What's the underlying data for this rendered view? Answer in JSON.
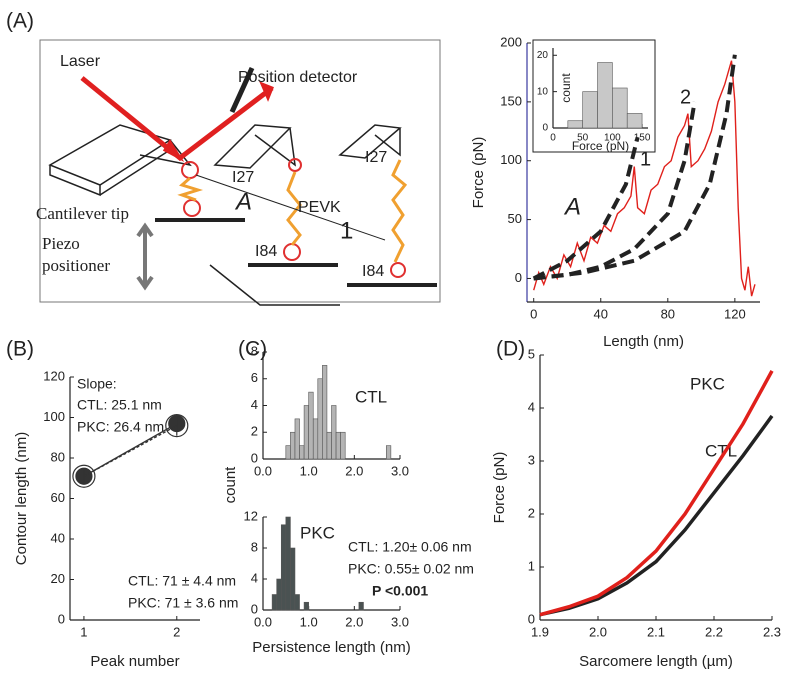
{
  "panels": [
    "(A)",
    "(B)",
    "(C)",
    "(D)"
  ],
  "diagram": {
    "labels": [
      "Laser",
      "Position detector",
      "Cantilever tip",
      "Piezo",
      "positioner",
      "I27",
      "PEVK",
      "I27",
      "I84",
      "I84",
      "A",
      "1"
    ]
  },
  "chart_data": [
    {
      "type": "line",
      "xlabel": "Length (nm)",
      "ylabel": "Force (pN)",
      "xlim": [
        -4,
        135
      ],
      "ylim": [
        -20,
        200
      ],
      "xticks": [
        0,
        40,
        80,
        120
      ],
      "yticks": [
        0,
        50,
        100,
        150,
        200
      ],
      "series": [
        {
          "color": "#e0201b",
          "x": [
            0,
            3,
            6,
            10,
            14,
            18,
            22,
            26,
            30,
            34,
            38,
            42,
            46,
            50,
            54,
            58,
            60,
            62,
            66,
            70,
            74,
            78,
            82,
            86,
            90,
            92,
            94,
            98,
            102,
            106,
            110,
            114,
            118,
            120,
            122,
            124,
            126,
            128,
            130,
            132
          ],
          "values": [
            -10,
            5,
            -5,
            10,
            0,
            20,
            10,
            30,
            15,
            35,
            30,
            45,
            40,
            55,
            60,
            70,
            95,
            60,
            55,
            75,
            80,
            95,
            100,
            120,
            130,
            140,
            95,
            100,
            110,
            125,
            150,
            165,
            185,
            150,
            60,
            0,
            -10,
            10,
            -15,
            -5
          ]
        },
        {
          "color": "#222222",
          "dash": true,
          "label": "A",
          "x": [
            0,
            20,
            40,
            55,
            62
          ],
          "values": [
            0,
            15,
            40,
            80,
            120
          ]
        },
        {
          "color": "#222222",
          "dash": true,
          "label": "1",
          "x": [
            0,
            20,
            40,
            60,
            80,
            90,
            96
          ],
          "values": [
            0,
            3,
            10,
            25,
            55,
            100,
            150
          ]
        },
        {
          "color": "#222222",
          "dash": true,
          "label": "2",
          "x": [
            0,
            30,
            60,
            90,
            105,
            115,
            120
          ],
          "values": [
            0,
            5,
            15,
            40,
            80,
            140,
            190
          ]
        }
      ]
    },
    {
      "type": "histogram",
      "xlabel": "Force (pN)",
      "ylabel": "count",
      "color": "#c8c8c8",
      "xlim": [
        0,
        160
      ],
      "ylim": [
        0,
        22
      ],
      "xticks": [
        0,
        50,
        100,
        150
      ],
      "yticks": [
        0,
        10,
        20
      ],
      "bins": [
        0,
        25,
        50,
        75,
        100,
        125,
        150
      ],
      "values": [
        0,
        2,
        10,
        18,
        11,
        4
      ]
    },
    {
      "type": "line",
      "xlabel": "Peak number",
      "ylabel": "Contour length (nm)",
      "xlim": [
        0.85,
        2.25
      ],
      "ylim": [
        0,
        120
      ],
      "xticks": [
        1,
        2
      ],
      "yticks": [
        0,
        20,
        40,
        60,
        80,
        100,
        120
      ],
      "x": [
        1,
        2
      ],
      "series": [
        {
          "color": "#333333",
          "marker": "filled",
          "values": [
            71,
            97
          ]
        },
        {
          "color": "#333333",
          "marker": "open",
          "dash": true,
          "values": [
            71,
            96
          ],
          "errors": [
            3,
            5
          ]
        }
      ],
      "annotations": [
        "Slope:",
        "CTL: 25.1 nm",
        "PKC: 26.4 nm",
        "CTL: 71 ± 4.4 nm",
        "PKC: 71 ± 3.6 nm"
      ]
    },
    {
      "type": "histogram",
      "ylabel": "count",
      "label": "CTL",
      "color": "#b4b4b4",
      "xlim": [
        0,
        3
      ],
      "ylim": [
        0,
        8
      ],
      "xticks": [
        {
          "value": 0,
          "label": "0.0"
        },
        {
          "value": 1,
          "label": "1.0"
        },
        {
          "value": 2,
          "label": "2.0"
        },
        {
          "value": 3,
          "label": "3.0"
        }
      ],
      "yticks": [
        0,
        2,
        4,
        6,
        8
      ],
      "bins": [
        0.5,
        0.6,
        0.7,
        0.8,
        0.9,
        1.0,
        1.1,
        1.2,
        1.3,
        1.4,
        1.5,
        1.6,
        1.7,
        1.8,
        1.9,
        2.0,
        2.1,
        2.2,
        2.3,
        2.4,
        2.5,
        2.6,
        2.7,
        2.8
      ],
      "values": [
        1,
        2,
        3,
        1,
        4,
        5,
        3,
        6,
        7,
        2,
        4,
        2,
        2,
        0,
        0,
        0,
        0,
        0,
        0,
        0,
        0,
        0,
        1
      ]
    },
    {
      "type": "histogram",
      "xlabel": "Persistence length (nm)",
      "label": "PKC",
      "color": "#4a5252",
      "xlim": [
        0,
        3
      ],
      "ylim": [
        0,
        12
      ],
      "xticks": [
        {
          "value": 0,
          "label": "0.0"
        },
        {
          "value": 1,
          "label": "1.0"
        },
        {
          "value": 2,
          "label": "2.0"
        },
        {
          "value": 3,
          "label": "3.0"
        }
      ],
      "yticks": [
        0,
        4,
        8,
        12
      ],
      "bins": [
        0.2,
        0.3,
        0.4,
        0.5,
        0.6,
        0.7,
        0.8,
        0.9,
        1.0,
        1.1,
        1.2,
        1.3,
        1.4,
        1.5,
        1.6,
        1.7,
        1.8,
        1.9,
        2.0,
        2.1,
        2.2
      ],
      "values": [
        2,
        4,
        11,
        12,
        8,
        2,
        0,
        1,
        0,
        0,
        0,
        0,
        0,
        0,
        0,
        0,
        0,
        0,
        0,
        1
      ],
      "annotations": [
        "CTL: 1.20± 0.06 nm",
        "PKC: 0.55± 0.02 nm",
        "P <0.001"
      ]
    },
    {
      "type": "line",
      "xlabel": "Sarcomere length (µm)",
      "ylabel": "Force (pN)",
      "xlim": [
        1.9,
        2.3
      ],
      "ylim": [
        0,
        5
      ],
      "xticks": [
        1.9,
        {
          "value": 2,
          "label": "2.0"
        },
        2.1,
        2.2,
        2.3
      ],
      "yticks": [
        0,
        1,
        2,
        3,
        4,
        5
      ],
      "x": [
        1.9,
        1.95,
        2.0,
        2.05,
        2.1,
        2.15,
        2.2,
        2.25,
        2.3
      ],
      "series": [
        {
          "name": "CTL",
          "color": "#222222",
          "values": [
            0.1,
            0.22,
            0.4,
            0.7,
            1.1,
            1.7,
            2.4,
            3.1,
            3.85
          ]
        },
        {
          "name": "PKC",
          "color": "#e0201b",
          "values": [
            0.1,
            0.25,
            0.45,
            0.8,
            1.3,
            2.0,
            2.85,
            3.7,
            4.7
          ]
        }
      ]
    }
  ]
}
